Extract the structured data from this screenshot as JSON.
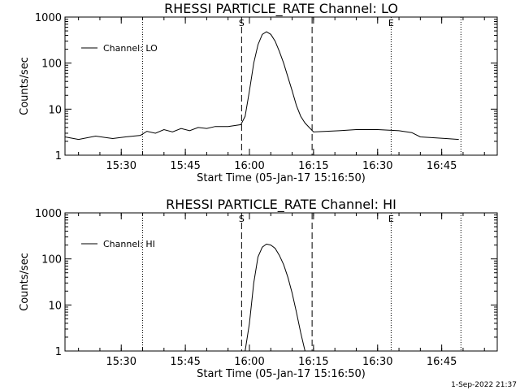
{
  "timestamp": "1-Sep-2022 21:37",
  "chart_data": [
    {
      "type": "line",
      "title": "RHESSI PARTICLE_RATE Channel: LO",
      "xlabel": "Start Time (05-Jan-17 15:16:50)",
      "ylabel": "Counts/sec",
      "y_scale": "log",
      "ylim": [
        1,
        1000
      ],
      "xlim": [
        "15:16:50",
        "16:58:00"
      ],
      "x_ticks": [
        "15:30",
        "15:45",
        "16:00",
        "16:15",
        "16:30",
        "16:45"
      ],
      "y_ticks": [
        "1",
        "10",
        "100",
        "1000"
      ],
      "legend": {
        "position": "top-left",
        "label": "Channel: LO"
      },
      "markers": [
        {
          "label": "S",
          "time": "15:58:10",
          "style": "dashed"
        },
        {
          "label": "E",
          "time": "16:33:10",
          "style": "dotted"
        }
      ],
      "vlines": [
        {
          "time": "15:35:00",
          "style": "dotted"
        },
        {
          "time": "15:58:10",
          "style": "dashed"
        },
        {
          "time": "16:14:40",
          "style": "dashed"
        },
        {
          "time": "16:33:10",
          "style": "dotted"
        },
        {
          "time": "16:49:30",
          "style": "dotted"
        }
      ],
      "series": [
        {
          "name": "Channel: LO",
          "x": [
            "15:16:50",
            "15:20:00",
            "15:24:00",
            "15:28:00",
            "15:31:00",
            "15:34:30",
            "15:36:00",
            "15:38:00",
            "15:40:00",
            "15:42:00",
            "15:44:00",
            "15:46:00",
            "15:48:00",
            "15:50:00",
            "15:52:00",
            "15:55:00",
            "15:58:00",
            "15:59:00",
            "16:00:00",
            "16:01:00",
            "16:02:00",
            "16:03:00",
            "16:04:00",
            "16:05:00",
            "16:06:00",
            "16:07:00",
            "16:08:00",
            "16:09:00",
            "16:10:00",
            "16:11:00",
            "16:12:00",
            "16:13:00",
            "16:14:00",
            "16:15:00",
            "16:18:00",
            "16:21:00",
            "16:25:00",
            "16:30:00",
            "16:35:00",
            "16:38:00",
            "16:40:00",
            "16:43:00",
            "16:46:00",
            "16:49:00"
          ],
          "y": [
            2.5,
            2.2,
            2.6,
            2.3,
            2.5,
            2.7,
            3.3,
            3.0,
            3.6,
            3.2,
            3.8,
            3.4,
            4.0,
            3.8,
            4.2,
            4.2,
            4.6,
            7,
            25,
            100,
            250,
            420,
            480,
            420,
            300,
            180,
            100,
            50,
            25,
            12,
            7,
            5,
            4,
            3.2,
            3.3,
            3.4,
            3.6,
            3.6,
            3.4,
            3.1,
            2.5,
            2.4,
            2.3,
            2.2
          ]
        }
      ]
    },
    {
      "type": "line",
      "title": "RHESSI PARTICLE_RATE Channel: HI",
      "xlabel": "Start Time (05-Jan-17 15:16:50)",
      "ylabel": "Counts/sec",
      "y_scale": "log",
      "ylim": [
        1,
        1000
      ],
      "xlim": [
        "15:16:50",
        "16:58:00"
      ],
      "x_ticks": [
        "15:30",
        "15:45",
        "16:00",
        "16:15",
        "16:30",
        "16:45"
      ],
      "y_ticks": [
        "1",
        "10",
        "100",
        "1000"
      ],
      "legend": {
        "position": "top-left",
        "label": "Channel: HI"
      },
      "markers": [
        {
          "label": "S",
          "time": "15:58:10",
          "style": "dashed"
        },
        {
          "label": "E",
          "time": "16:33:10",
          "style": "dotted"
        }
      ],
      "vlines": [
        {
          "time": "15:35:00",
          "style": "dotted"
        },
        {
          "time": "15:58:10",
          "style": "dashed"
        },
        {
          "time": "16:14:40",
          "style": "dashed"
        },
        {
          "time": "16:33:10",
          "style": "dotted"
        },
        {
          "time": "16:49:30",
          "style": "dotted"
        }
      ],
      "series": [
        {
          "name": "Channel: HI",
          "x": [
            "15:59:00",
            "16:00:00",
            "16:01:00",
            "16:02:00",
            "16:03:00",
            "16:04:00",
            "16:05:00",
            "16:06:00",
            "16:07:00",
            "16:08:00",
            "16:09:00",
            "16:10:00",
            "16:11:00",
            "16:12:00",
            "16:13:00"
          ],
          "y": [
            1,
            4,
            30,
            110,
            180,
            210,
            200,
            170,
            120,
            75,
            40,
            18,
            7,
            2.5,
            1
          ]
        }
      ]
    }
  ]
}
